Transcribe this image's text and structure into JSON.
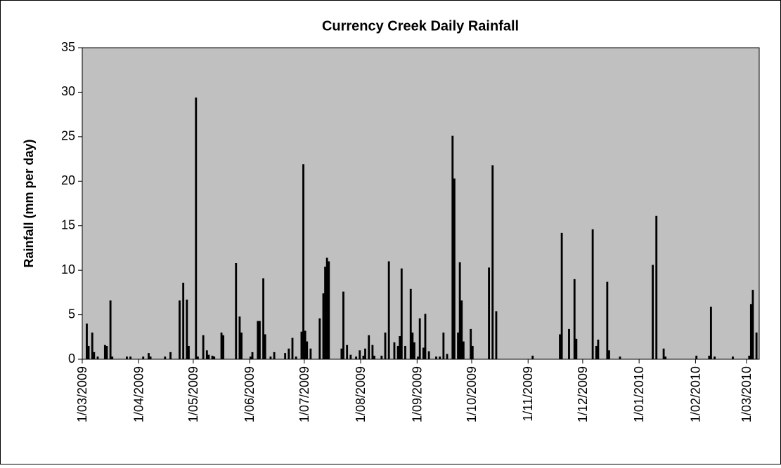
{
  "chart_data": {
    "type": "bar",
    "title": "Currency Creek Daily Rainfall",
    "y_label": "Rainfall (mm per day)",
    "color": "#000000",
    "background": "#c0c0c0",
    "x": [
      "2009-03-03",
      "2009-03-04",
      "2009-03-06",
      "2009-03-07",
      "2009-03-09",
      "2009-03-13",
      "2009-03-14",
      "2009-03-16",
      "2009-03-17",
      "2009-03-25",
      "2009-03-27",
      "2009-04-03",
      "2009-04-06",
      "2009-04-07",
      "2009-04-15",
      "2009-04-18",
      "2009-04-23",
      "2009-04-25",
      "2009-04-27",
      "2009-04-28",
      "2009-05-02",
      "2009-05-03",
      "2009-05-06",
      "2009-05-08",
      "2009-05-09",
      "2009-05-11",
      "2009-05-12",
      "2009-05-16",
      "2009-05-17",
      "2009-05-24",
      "2009-05-26",
      "2009-05-27",
      "2009-06-01",
      "2009-06-02",
      "2009-06-05",
      "2009-06-06",
      "2009-06-08",
      "2009-06-09",
      "2009-06-12",
      "2009-06-14",
      "2009-06-20",
      "2009-06-22",
      "2009-06-24",
      "2009-06-26",
      "2009-06-29",
      "2009-06-30",
      "2009-07-01",
      "2009-07-02",
      "2009-07-04",
      "2009-07-09",
      "2009-07-11",
      "2009-07-12",
      "2009-07-13",
      "2009-07-14",
      "2009-07-21",
      "2009-07-22",
      "2009-07-24",
      "2009-07-26",
      "2009-07-29",
      "2009-07-31",
      "2009-08-02",
      "2009-08-03",
      "2009-08-05",
      "2009-08-07",
      "2009-08-08",
      "2009-08-12",
      "2009-08-14",
      "2009-08-16",
      "2009-08-19",
      "2009-08-21",
      "2009-08-22",
      "2009-08-23",
      "2009-08-25",
      "2009-08-28",
      "2009-08-29",
      "2009-08-30",
      "2009-09-01",
      "2009-09-02",
      "2009-09-04",
      "2009-09-05",
      "2009-09-07",
      "2009-09-11",
      "2009-09-13",
      "2009-09-15",
      "2009-09-17",
      "2009-09-20",
      "2009-09-21",
      "2009-09-23",
      "2009-09-24",
      "2009-09-25",
      "2009-09-26",
      "2009-09-30",
      "2009-10-01",
      "2009-10-10",
      "2009-10-12",
      "2009-10-14",
      "2009-11-03",
      "2009-11-18",
      "2009-11-19",
      "2009-11-23",
      "2009-11-26",
      "2009-11-27",
      "2009-12-06",
      "2009-12-08",
      "2009-12-09",
      "2009-12-14",
      "2009-12-15",
      "2009-12-21",
      "2010-01-08",
      "2010-01-10",
      "2010-01-14",
      "2010-01-15",
      "2010-02-01",
      "2010-02-08",
      "2010-02-09",
      "2010-02-11",
      "2010-02-21",
      "2010-03-02",
      "2010-03-03",
      "2010-03-04",
      "2010-03-06"
    ],
    "values": [
      4.0,
      1.5,
      3.0,
      0.8,
      0.3,
      1.6,
      1.5,
      6.6,
      0.3,
      0.3,
      0.3,
      0.3,
      0.7,
      0.3,
      0.3,
      0.8,
      6.6,
      8.6,
      6.7,
      1.5,
      29.4,
      0.3,
      2.7,
      1.0,
      0.5,
      0.4,
      0.3,
      3.0,
      2.7,
      10.8,
      4.8,
      3.0,
      0.3,
      0.8,
      4.3,
      4.3,
      9.1,
      2.8,
      0.3,
      0.8,
      0.7,
      1.2,
      2.4,
      0.3,
      3.1,
      21.9,
      3.2,
      2.0,
      1.2,
      4.6,
      7.4,
      10.4,
      11.4,
      11.0,
      1.2,
      7.6,
      1.6,
      0.5,
      0.3,
      1.0,
      0.4,
      1.2,
      2.7,
      1.6,
      0.4,
      0.4,
      3.0,
      11.0,
      1.9,
      1.5,
      2.6,
      10.2,
      1.5,
      7.9,
      3.0,
      1.9,
      0.3,
      4.6,
      1.3,
      5.1,
      0.9,
      0.3,
      0.3,
      3.0,
      0.6,
      25.1,
      20.3,
      3.0,
      10.9,
      6.6,
      2.0,
      3.4,
      1.5,
      10.3,
      21.8,
      5.4,
      0.4,
      2.8,
      14.2,
      3.4,
      9.0,
      2.3,
      14.6,
      1.5,
      2.2,
      8.7,
      1.0,
      0.3,
      10.6,
      16.1,
      1.2,
      0.3,
      0.4,
      0.4,
      5.9,
      0.3,
      0.3,
      0.4,
      6.2,
      7.8,
      3.0
    ],
    "xlim": [
      "2009-03-01",
      "2010-03-07"
    ],
    "xticks": [
      {
        "value": "2009-03-01",
        "label": "1/03/2009"
      },
      {
        "value": "2009-04-01",
        "label": "1/04/2009"
      },
      {
        "value": "2009-05-01",
        "label": "1/05/2009"
      },
      {
        "value": "2009-06-01",
        "label": "1/06/2009"
      },
      {
        "value": "2009-07-01",
        "label": "1/07/2009"
      },
      {
        "value": "2009-08-01",
        "label": "1/08/2009"
      },
      {
        "value": "2009-09-01",
        "label": "1/09/2009"
      },
      {
        "value": "2009-10-01",
        "label": "1/10/2009"
      },
      {
        "value": "2009-11-01",
        "label": "1/11/2009"
      },
      {
        "value": "2009-12-01",
        "label": "1/12/2009"
      },
      {
        "value": "2010-01-01",
        "label": "1/01/2010"
      },
      {
        "value": "2010-02-01",
        "label": "1/02/2010"
      },
      {
        "value": "2010-03-01",
        "label": "1/03/2010"
      }
    ],
    "ylim": [
      0,
      35
    ],
    "yticks": [
      0,
      5,
      10,
      15,
      20,
      25,
      30,
      35
    ],
    "grid": false
  }
}
